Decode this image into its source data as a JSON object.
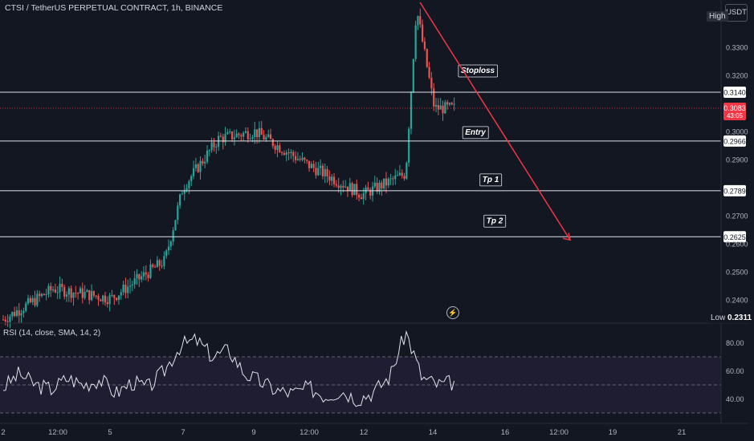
{
  "header": {
    "symbol_title": "CTSI / TetherUS PERPETUAL CONTRACT, 1h, BINANCE",
    "currency_button": "USDT",
    "high_label": "High",
    "low_label": "Low",
    "low_value": "0.2311"
  },
  "rsi": {
    "title": "RSI (14, close, SMA, 14, 2)",
    "ticks": [
      "80.00",
      "60.00",
      "40.00"
    ],
    "upper_band": 70,
    "lower_band": 30,
    "middle_band": 50
  },
  "price_axis": {
    "ticks": [
      "0.3300",
      "0.3200",
      "0.3000",
      "0.2900",
      "0.2700",
      "0.2600",
      "0.2500",
      "0.2400"
    ],
    "current_price": "0.3083",
    "countdown": "43:05"
  },
  "time_axis": {
    "ticks": [
      "2",
      "12:00",
      "5",
      "7",
      "9",
      "12:00",
      "12",
      "14",
      "16",
      "12:00",
      "19",
      "21"
    ]
  },
  "annotations": {
    "levels": [
      {
        "label": "Stoploss",
        "price": "0.3140"
      },
      {
        "label": "Entry",
        "price": "0.2966"
      },
      {
        "label": "Tp 1",
        "price": "0.2789"
      },
      {
        "label": "Tp 2",
        "price": "0.2625"
      }
    ],
    "arrow": {
      "from_price": 0.346,
      "to_price": 0.2625
    }
  },
  "colors": {
    "background": "#131722",
    "bull": "#26a69a",
    "bear": "#ef5350",
    "level_line": "#e0e3eb",
    "arrow": "#f23645",
    "rsi_line": "#e0e3eb",
    "price_label_bg": "#f23645"
  },
  "chart_data": {
    "type": "candlestick",
    "title": "CTSI / TetherUS PERPETUAL CONTRACT, 1h, BINANCE",
    "xlabel": "",
    "ylabel": "",
    "ylim": [
      0.2311,
      0.35
    ],
    "grid": false,
    "horizontal_levels": [
      0.314,
      0.2966,
      0.2789,
      0.2625
    ],
    "close_path": [
      {
        "t": "2",
        "close": 0.233
      },
      {
        "t": "12:00",
        "close": 0.244
      },
      {
        "t": "5",
        "close": 0.2405
      },
      {
        "t": "6",
        "close": 0.254
      },
      {
        "t": "7",
        "close": 0.28
      },
      {
        "t": "8",
        "close": 0.2975
      },
      {
        "t": "9",
        "close": 0.3
      },
      {
        "t": "12:00",
        "close": 0.288
      },
      {
        "t": "12",
        "close": 0.2775
      },
      {
        "t": "13",
        "close": 0.285
      },
      {
        "t": "13 peak",
        "close": 0.344
      },
      {
        "t": "14",
        "close": 0.3083
      }
    ],
    "series": [
      {
        "name": "RSI (14, close, SMA, 14, 2)",
        "values": [
          48,
          58,
          50,
          47,
          55,
          50,
          54,
          44,
          52,
          48,
          60,
          78,
          82,
          70,
          75,
          58,
          52,
          46,
          44,
          48,
          42,
          46,
          40,
          45,
          56,
          88,
          55,
          50,
          52
        ]
      }
    ]
  }
}
